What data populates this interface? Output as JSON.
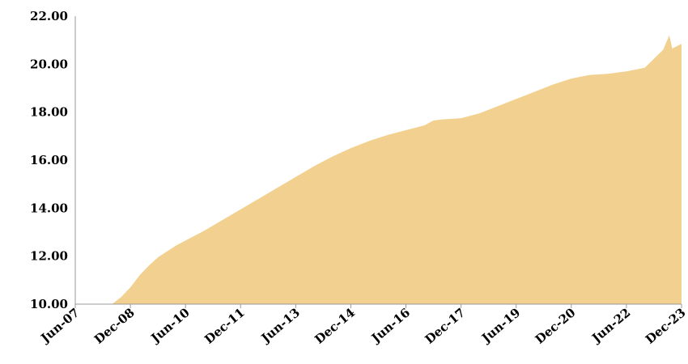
{
  "chart_data": {
    "type": "area",
    "title": "",
    "xlabel": "",
    "ylabel": "",
    "ylim": [
      10.0,
      22.0
    ],
    "yticks": [
      "10.00",
      "12.00",
      "14.00",
      "16.00",
      "18.00",
      "20.00",
      "22.00"
    ],
    "xticks": [
      "Jun-07",
      "Dec-08",
      "Jun-10",
      "Dec-11",
      "Jun-13",
      "Dec-14",
      "Jun-16",
      "Dec-17",
      "Jun-19",
      "Dec-20",
      "Jun-22",
      "Dec-23"
    ],
    "xlim": [
      "2007-06",
      "2023-12"
    ],
    "grid": false,
    "legend": "none",
    "series": [
      {
        "color": "#F2D08F",
        "x": [
          "2008-06",
          "2008-09",
          "2008-12",
          "2009-03",
          "2009-06",
          "2009-09",
          "2009-12",
          "2010-03",
          "2010-06",
          "2010-12",
          "2011-06",
          "2011-12",
          "2012-06",
          "2012-12",
          "2013-06",
          "2013-12",
          "2014-06",
          "2014-12",
          "2015-06",
          "2015-12",
          "2016-06",
          "2016-12",
          "2017-03",
          "2017-06",
          "2017-12",
          "2018-06",
          "2018-12",
          "2019-06",
          "2019-12",
          "2020-06",
          "2020-12",
          "2021-06",
          "2021-12",
          "2022-06",
          "2022-12",
          "2023-06",
          "2023-08",
          "2023-09",
          "2023-12"
        ],
        "values": [
          10.0,
          10.3,
          10.7,
          11.2,
          11.6,
          11.95,
          12.2,
          12.45,
          12.65,
          13.05,
          13.5,
          13.95,
          14.4,
          14.85,
          15.3,
          15.75,
          16.15,
          16.5,
          16.8,
          17.05,
          17.25,
          17.45,
          17.65,
          17.7,
          17.75,
          17.95,
          18.25,
          18.55,
          18.85,
          19.15,
          19.4,
          19.55,
          19.6,
          19.7,
          19.85,
          20.6,
          21.2,
          20.65,
          20.85
        ]
      }
    ]
  }
}
